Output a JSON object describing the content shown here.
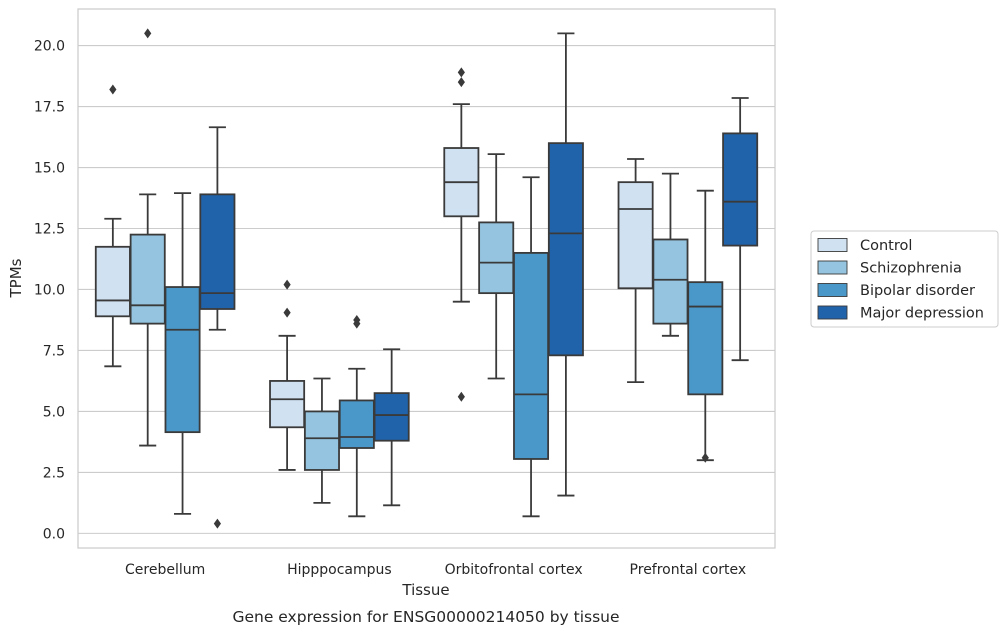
{
  "chart_data": {
    "type": "box",
    "caption": "Gene expression for ENSG00000214050 by tissue",
    "xlabel": "Tissue",
    "ylabel": "TPMs",
    "ylim": [
      -0.6,
      21.5
    ],
    "yticks": [
      0.0,
      2.5,
      5.0,
      7.5,
      10.0,
      12.5,
      15.0,
      17.5,
      20.0
    ],
    "ytick_labels": [
      "0.0",
      "2.5",
      "5.0",
      "7.5",
      "10.0",
      "12.5",
      "15.0",
      "17.5",
      "20.0"
    ],
    "grid": "horizontal",
    "legend_position": "right",
    "categories": [
      "Cerebellum",
      "Hipppocampus",
      "Orbitofrontal cortex",
      "Prefrontal cortex"
    ],
    "series": [
      {
        "name": "Control",
        "color": "#d0e1f2",
        "boxes": [
          {
            "whisker_low": 6.85,
            "q1": 8.9,
            "median": 9.55,
            "q3": 11.75,
            "whisker_high": 12.9,
            "outliers": [
              18.2
            ]
          },
          {
            "whisker_low": 2.6,
            "q1": 4.35,
            "median": 5.5,
            "q3": 6.25,
            "whisker_high": 8.1,
            "outliers": [
              9.05,
              10.2
            ]
          },
          {
            "whisker_low": 9.5,
            "q1": 13.0,
            "median": 14.4,
            "q3": 15.8,
            "whisker_high": 17.6,
            "outliers": [
              5.6,
              18.5,
              18.9
            ]
          },
          {
            "whisker_low": 6.2,
            "q1": 10.05,
            "median": 13.3,
            "q3": 14.4,
            "whisker_high": 15.35,
            "outliers": []
          }
        ]
      },
      {
        "name": "Schizophrenia",
        "color": "#94c4df",
        "boxes": [
          {
            "whisker_low": 3.6,
            "q1": 8.6,
            "median": 9.35,
            "q3": 12.25,
            "whisker_high": 13.9,
            "outliers": [
              20.5
            ]
          },
          {
            "whisker_low": 1.25,
            "q1": 2.6,
            "median": 3.9,
            "q3": 5.0,
            "whisker_high": 6.35,
            "outliers": []
          },
          {
            "whisker_low": 6.35,
            "q1": 9.85,
            "median": 11.1,
            "q3": 12.75,
            "whisker_high": 15.55,
            "outliers": []
          },
          {
            "whisker_low": 8.1,
            "q1": 8.6,
            "median": 10.4,
            "q3": 12.05,
            "whisker_high": 14.75,
            "outliers": []
          }
        ]
      },
      {
        "name": "Bipolar disorder",
        "color": "#4a98c9",
        "boxes": [
          {
            "whisker_low": 0.8,
            "q1": 4.15,
            "median": 8.35,
            "q3": 10.1,
            "whisker_high": 13.95,
            "outliers": []
          },
          {
            "whisker_low": 0.7,
            "q1": 3.5,
            "median": 3.95,
            "q3": 5.45,
            "whisker_high": 6.75,
            "outliers": [
              8.6,
              8.75
            ]
          },
          {
            "whisker_low": 0.7,
            "q1": 3.05,
            "median": 5.7,
            "q3": 11.5,
            "whisker_high": 14.6,
            "outliers": []
          },
          {
            "whisker_low": 3.0,
            "q1": 5.7,
            "median": 9.3,
            "q3": 10.3,
            "whisker_high": 14.05,
            "outliers": [
              3.1
            ]
          }
        ]
      },
      {
        "name": "Major depression",
        "color": "#2163aa",
        "boxes": [
          {
            "whisker_low": 8.35,
            "q1": 9.2,
            "median": 9.85,
            "q3": 13.9,
            "whisker_high": 16.65,
            "outliers": [
              0.4
            ]
          },
          {
            "whisker_low": 1.15,
            "q1": 3.8,
            "median": 4.85,
            "q3": 5.75,
            "whisker_high": 7.55,
            "outliers": []
          },
          {
            "whisker_low": 1.55,
            "q1": 7.3,
            "median": 12.3,
            "q3": 16.0,
            "whisker_high": 20.5,
            "outliers": []
          },
          {
            "whisker_low": 7.1,
            "q1": 11.8,
            "median": 13.6,
            "q3": 16.4,
            "whisker_high": 17.85,
            "outliers": []
          }
        ]
      }
    ]
  }
}
